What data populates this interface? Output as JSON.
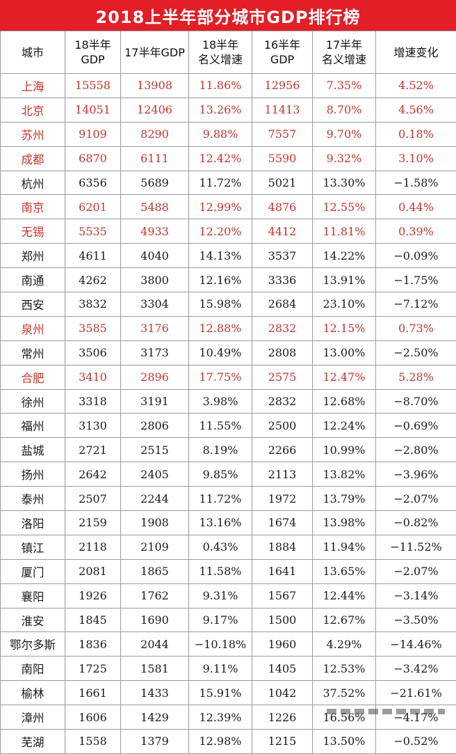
{
  "title": "2018上半年部分城市GDP排行榜",
  "columns": [
    {
      "line1": "城市",
      "line2": ""
    },
    {
      "line1": "18半年",
      "line2": "GDP"
    },
    {
      "line1": "17半年GDP",
      "line2": ""
    },
    {
      "line1": "18半年",
      "line2": "名义增速"
    },
    {
      "line1": "16半年",
      "line2": "GDP"
    },
    {
      "line1": "17半年",
      "line2": "名义增速"
    },
    {
      "line1": "增速变化",
      "line2": ""
    }
  ],
  "rows": [
    {
      "highlight": true,
      "cells": [
        "上海",
        "15558",
        "13908",
        "11.86%",
        "12956",
        "7.35%",
        "4.52%"
      ]
    },
    {
      "highlight": true,
      "cells": [
        "北京",
        "14051",
        "12406",
        "13.26%",
        "11413",
        "8.70%",
        "4.56%"
      ]
    },
    {
      "highlight": true,
      "cells": [
        "苏州",
        "9109",
        "8290",
        "9.88%",
        "7557",
        "9.70%",
        "0.18%"
      ]
    },
    {
      "highlight": true,
      "cells": [
        "成都",
        "6870",
        "6111",
        "12.42%",
        "5590",
        "9.32%",
        "3.10%"
      ]
    },
    {
      "highlight": false,
      "cells": [
        "杭州",
        "6356",
        "5689",
        "11.72%",
        "5021",
        "13.30%",
        "−1.58%"
      ]
    },
    {
      "highlight": true,
      "cells": [
        "南京",
        "6201",
        "5488",
        "12.99%",
        "4876",
        "12.55%",
        "0.44%"
      ]
    },
    {
      "highlight": true,
      "cells": [
        "无锡",
        "5535",
        "4933",
        "12.20%",
        "4412",
        "11.81%",
        "0.39%"
      ]
    },
    {
      "highlight": false,
      "cells": [
        "郑州",
        "4611",
        "4040",
        "14.13%",
        "3537",
        "14.22%",
        "−0.09%"
      ]
    },
    {
      "highlight": false,
      "cells": [
        "南通",
        "4262",
        "3800",
        "12.16%",
        "3336",
        "13.91%",
        "−1.75%"
      ]
    },
    {
      "highlight": false,
      "cells": [
        "西安",
        "3832",
        "3304",
        "15.98%",
        "2684",
        "23.10%",
        "−7.12%"
      ]
    },
    {
      "highlight": true,
      "cells": [
        "泉州",
        "3585",
        "3176",
        "12.88%",
        "2832",
        "12.15%",
        "0.73%"
      ]
    },
    {
      "highlight": false,
      "cells": [
        "常州",
        "3506",
        "3173",
        "10.49%",
        "2808",
        "13.00%",
        "−2.50%"
      ]
    },
    {
      "highlight": true,
      "cells": [
        "合肥",
        "3410",
        "2896",
        "17.75%",
        "2575",
        "12.47%",
        "5.28%"
      ]
    },
    {
      "highlight": false,
      "cells": [
        "徐州",
        "3318",
        "3191",
        "3.98%",
        "2832",
        "12.68%",
        "−8.70%"
      ]
    },
    {
      "highlight": false,
      "cells": [
        "福州",
        "3130",
        "2806",
        "11.55%",
        "2500",
        "12.24%",
        "−0.69%"
      ]
    },
    {
      "highlight": false,
      "cells": [
        "盐城",
        "2721",
        "2515",
        "8.19%",
        "2266",
        "10.99%",
        "−2.80%"
      ]
    },
    {
      "highlight": false,
      "cells": [
        "扬州",
        "2642",
        "2405",
        "9.85%",
        "2113",
        "13.82%",
        "−3.96%"
      ]
    },
    {
      "highlight": false,
      "cells": [
        "泰州",
        "2507",
        "2244",
        "11.72%",
        "1972",
        "13.79%",
        "−2.07%"
      ]
    },
    {
      "highlight": false,
      "cells": [
        "洛阳",
        "2159",
        "1908",
        "13.16%",
        "1674",
        "13.98%",
        "−0.82%"
      ]
    },
    {
      "highlight": false,
      "cells": [
        "镇江",
        "2118",
        "2109",
        "0.43%",
        "1884",
        "11.94%",
        "−11.52%"
      ]
    },
    {
      "highlight": false,
      "cells": [
        "厦门",
        "2081",
        "1865",
        "11.58%",
        "1641",
        "13.65%",
        "−2.07%"
      ]
    },
    {
      "highlight": false,
      "cells": [
        "襄阳",
        "1926",
        "1762",
        "9.31%",
        "1567",
        "12.44%",
        "−3.14%"
      ]
    },
    {
      "highlight": false,
      "cells": [
        "淮安",
        "1845",
        "1690",
        "9.17%",
        "1500",
        "12.67%",
        "−3.50%"
      ]
    },
    {
      "highlight": false,
      "cells": [
        "鄂尔多斯",
        "1836",
        "2044",
        "−10.18%",
        "1960",
        "4.29%",
        "−14.46%"
      ]
    },
    {
      "highlight": false,
      "cells": [
        "南阳",
        "1725",
        "1581",
        "9.11%",
        "1405",
        "12.53%",
        "−3.42%"
      ]
    },
    {
      "highlight": false,
      "cells": [
        "榆林",
        "1661",
        "1433",
        "15.91%",
        "1042",
        "37.52%",
        "−21.61%"
      ]
    },
    {
      "highlight": false,
      "cells": [
        "漳州",
        "1606",
        "1429",
        "12.39%",
        "1226",
        "16.56%",
        "−4.17%"
      ]
    },
    {
      "highlight": false,
      "cells": [
        "芜湖",
        "1558",
        "1379",
        "12.98%",
        "1215",
        "13.50%",
        "−0.52%"
      ]
    }
  ],
  "colors": {
    "title_background": "#e21e26",
    "title_text": "#ffffff",
    "highlight_text": "#c8332b",
    "normal_text": "#1a1a1a",
    "grid": "#9a9a9a"
  }
}
